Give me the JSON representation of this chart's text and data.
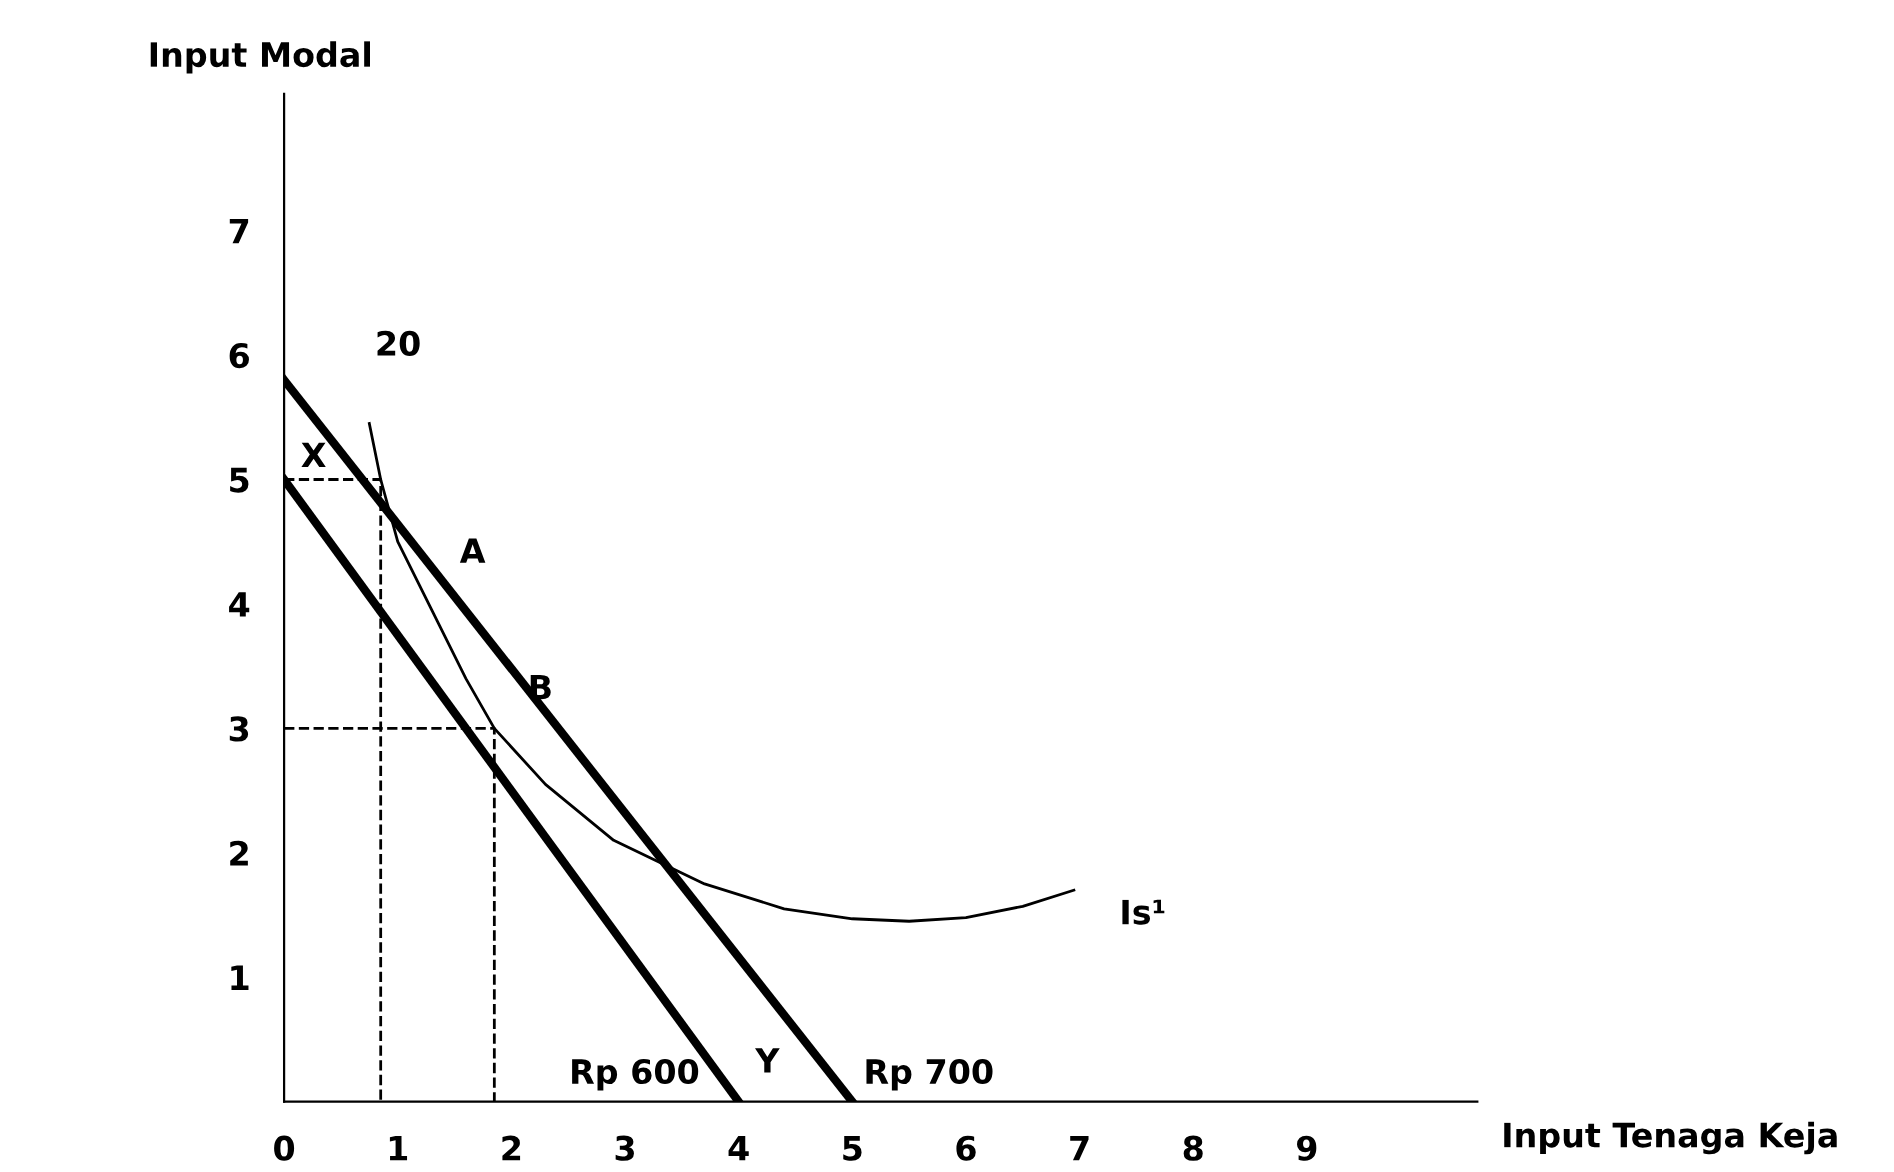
{
  "chart_data": {
    "type": "line",
    "xlabel": "Input Tenaga Keja",
    "ylabel": "Input Modal",
    "xlim": [
      0,
      10.5
    ],
    "ylim": [
      0,
      8.1
    ],
    "xticks": [
      0,
      1,
      2,
      3,
      4,
      5,
      6,
      7,
      8,
      9
    ],
    "yticks": [
      1,
      2,
      3,
      4,
      5,
      6,
      7
    ],
    "grid": false,
    "marker": "none",
    "line_style": "solid",
    "series": [
      {
        "name": "Rp 600",
        "color": "#000000",
        "x": [
          0,
          4
        ],
        "values": [
          5,
          0
        ]
      },
      {
        "name": "Rp 700",
        "color": "#000000",
        "x": [
          0,
          5
        ],
        "values": [
          5.8,
          0
        ]
      },
      {
        "name": "Is¹",
        "color": "#000000",
        "x": [
          0.75,
          0.85,
          1.0,
          1.3,
          1.6,
          1.85,
          2.3,
          2.9,
          3.7,
          4.4,
          5.0,
          5.5,
          6.0,
          6.5,
          6.95
        ],
        "values": [
          5.45,
          5.0,
          4.5,
          3.95,
          3.4,
          3.0,
          2.55,
          2.1,
          1.75,
          1.55,
          1.47,
          1.45,
          1.48,
          1.57,
          1.7
        ]
      },
      {
        "color": "#000000",
        "line_style": "dashed",
        "x": [
          0,
          0.85,
          0.85
        ],
        "values": [
          5,
          5,
          0
        ]
      },
      {
        "color": "#000000",
        "line_style": "dashed",
        "x": [
          0,
          1.85,
          1.85
        ],
        "values": [
          3,
          3,
          0
        ]
      }
    ],
    "annotations": [
      {
        "text": "20",
        "x": 0.75,
        "y": 5.45
      },
      {
        "text": "X",
        "x": 0,
        "y": 5
      },
      {
        "text": "A",
        "x": 1.35,
        "y": 4.23
      },
      {
        "text": "B",
        "x": 1.85,
        "y": 3
      },
      {
        "text": "Y",
        "x": 4,
        "y": 0
      }
    ]
  }
}
